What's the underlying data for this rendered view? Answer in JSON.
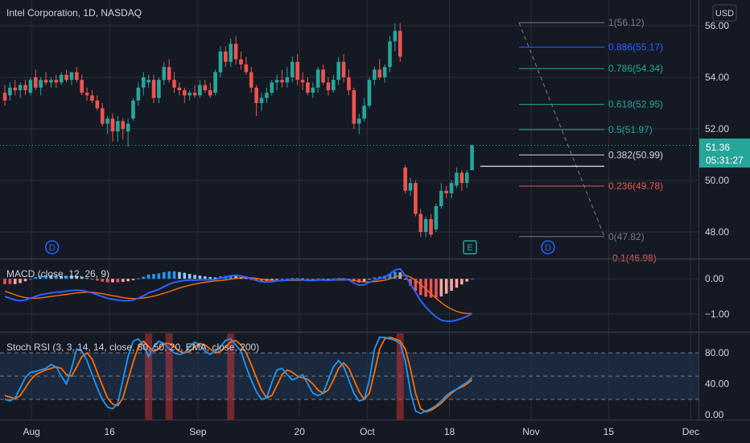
{
  "title": "Intel Corporation, 1D, NASDAQ",
  "currency": "USD",
  "price_badge": {
    "price": "51.36",
    "countdown": "05:31:27",
    "color": "#26a69a"
  },
  "colors": {
    "up": "#26a69a",
    "down": "#ef5350",
    "bg": "#151924",
    "grid": "#2a2e39"
  },
  "chart_data": [
    {
      "type": "candlestick",
      "name": "Intel Corporation, 1D, NASDAQ",
      "ylim": [
        47,
        57
      ],
      "y_ticks": [
        "56.00",
        "54.00",
        "52.00",
        "50.00",
        "48.00"
      ],
      "x_ticks": [
        "Aug",
        "16",
        "Sep",
        "20",
        "Oct",
        "18",
        "Nov",
        "15",
        "Dec"
      ],
      "candles": [
        {
          "o": 53.4,
          "h": 53.7,
          "l": 52.9,
          "c": 53.1
        },
        {
          "o": 53.3,
          "h": 53.8,
          "l": 53.1,
          "c": 53.6
        },
        {
          "o": 53.6,
          "h": 53.9,
          "l": 53.3,
          "c": 53.5
        },
        {
          "o": 53.5,
          "h": 53.8,
          "l": 53.2,
          "c": 53.7
        },
        {
          "o": 53.7,
          "h": 53.9,
          "l": 53.3,
          "c": 53.5
        },
        {
          "o": 53.4,
          "h": 54.0,
          "l": 53.3,
          "c": 53.9
        },
        {
          "o": 54.0,
          "h": 54.3,
          "l": 53.5,
          "c": 53.6
        },
        {
          "o": 53.6,
          "h": 54.0,
          "l": 53.3,
          "c": 53.9
        },
        {
          "o": 53.9,
          "h": 54.2,
          "l": 53.7,
          "c": 53.8
        },
        {
          "o": 53.8,
          "h": 54.0,
          "l": 53.6,
          "c": 53.9
        },
        {
          "o": 53.9,
          "h": 54.1,
          "l": 53.6,
          "c": 53.8
        },
        {
          "o": 53.8,
          "h": 54.2,
          "l": 53.7,
          "c": 54.1
        },
        {
          "o": 54.1,
          "h": 54.3,
          "l": 53.8,
          "c": 53.9
        },
        {
          "o": 53.9,
          "h": 54.2,
          "l": 53.7,
          "c": 54.2
        },
        {
          "o": 54.2,
          "h": 54.4,
          "l": 53.8,
          "c": 53.9
        },
        {
          "o": 53.9,
          "h": 54.1,
          "l": 53.3,
          "c": 53.4
        },
        {
          "o": 53.4,
          "h": 53.6,
          "l": 53.1,
          "c": 53.3
        },
        {
          "o": 53.3,
          "h": 53.5,
          "l": 53.0,
          "c": 53.1
        },
        {
          "o": 53.1,
          "h": 53.3,
          "l": 52.7,
          "c": 52.8
        },
        {
          "o": 52.8,
          "h": 53.0,
          "l": 52.1,
          "c": 52.2
        },
        {
          "o": 52.2,
          "h": 52.5,
          "l": 51.8,
          "c": 52.4
        },
        {
          "o": 52.4,
          "h": 52.6,
          "l": 51.5,
          "c": 51.9
        },
        {
          "o": 51.9,
          "h": 52.5,
          "l": 51.5,
          "c": 52.3
        },
        {
          "o": 52.3,
          "h": 52.4,
          "l": 51.6,
          "c": 52.0
        },
        {
          "o": 51.9,
          "h": 52.4,
          "l": 51.3,
          "c": 52.2
        },
        {
          "o": 52.4,
          "h": 53.2,
          "l": 52.3,
          "c": 53.1
        },
        {
          "o": 53.1,
          "h": 53.8,
          "l": 52.9,
          "c": 53.6
        },
        {
          "o": 53.6,
          "h": 54.2,
          "l": 53.3,
          "c": 54.0
        },
        {
          "o": 53.8,
          "h": 54.1,
          "l": 53.6,
          "c": 53.9
        },
        {
          "o": 53.9,
          "h": 54.1,
          "l": 53.0,
          "c": 53.2
        },
        {
          "o": 53.2,
          "h": 54.0,
          "l": 53.0,
          "c": 53.9
        },
        {
          "o": 53.9,
          "h": 54.6,
          "l": 53.7,
          "c": 54.4
        },
        {
          "o": 54.4,
          "h": 54.7,
          "l": 53.8,
          "c": 53.9
        },
        {
          "o": 53.9,
          "h": 54.2,
          "l": 53.4,
          "c": 53.6
        },
        {
          "o": 53.6,
          "h": 53.8,
          "l": 53.3,
          "c": 53.5
        },
        {
          "o": 53.5,
          "h": 53.6,
          "l": 53.0,
          "c": 53.3
        },
        {
          "o": 53.3,
          "h": 53.5,
          "l": 53.1,
          "c": 53.4
        },
        {
          "o": 53.4,
          "h": 53.7,
          "l": 53.2,
          "c": 53.3
        },
        {
          "o": 53.3,
          "h": 53.9,
          "l": 53.2,
          "c": 53.7
        },
        {
          "o": 53.7,
          "h": 53.9,
          "l": 53.4,
          "c": 53.5
        },
        {
          "o": 53.5,
          "h": 53.8,
          "l": 53.2,
          "c": 53.3
        },
        {
          "o": 53.4,
          "h": 54.3,
          "l": 53.3,
          "c": 54.2
        },
        {
          "o": 54.2,
          "h": 55.2,
          "l": 54.0,
          "c": 55.0
        },
        {
          "o": 55.0,
          "h": 55.2,
          "l": 54.4,
          "c": 54.6
        },
        {
          "o": 54.6,
          "h": 55.5,
          "l": 54.4,
          "c": 55.3
        },
        {
          "o": 55.3,
          "h": 55.6,
          "l": 54.5,
          "c": 54.7
        },
        {
          "o": 54.7,
          "h": 55.0,
          "l": 54.3,
          "c": 54.5
        },
        {
          "o": 54.5,
          "h": 54.8,
          "l": 54.1,
          "c": 54.2
        },
        {
          "o": 54.2,
          "h": 54.4,
          "l": 53.4,
          "c": 53.6
        },
        {
          "o": 53.6,
          "h": 53.7,
          "l": 52.5,
          "c": 53.0
        },
        {
          "o": 53.0,
          "h": 53.4,
          "l": 52.7,
          "c": 53.2
        },
        {
          "o": 53.2,
          "h": 53.6,
          "l": 53.0,
          "c": 53.4
        },
        {
          "o": 53.4,
          "h": 53.9,
          "l": 53.3,
          "c": 53.8
        },
        {
          "o": 53.8,
          "h": 54.1,
          "l": 53.5,
          "c": 53.9
        },
        {
          "o": 53.9,
          "h": 54.3,
          "l": 53.6,
          "c": 53.8
        },
        {
          "o": 53.8,
          "h": 54.4,
          "l": 53.6,
          "c": 54.0
        },
        {
          "o": 54.0,
          "h": 54.8,
          "l": 53.8,
          "c": 54.6
        },
        {
          "o": 54.6,
          "h": 54.9,
          "l": 53.7,
          "c": 53.9
        },
        {
          "o": 53.9,
          "h": 54.2,
          "l": 53.5,
          "c": 53.8
        },
        {
          "o": 53.8,
          "h": 54.0,
          "l": 53.3,
          "c": 53.4
        },
        {
          "o": 53.4,
          "h": 53.8,
          "l": 53.2,
          "c": 53.6
        },
        {
          "o": 53.6,
          "h": 54.4,
          "l": 53.4,
          "c": 54.3
        },
        {
          "o": 54.3,
          "h": 54.5,
          "l": 53.7,
          "c": 53.8
        },
        {
          "o": 53.8,
          "h": 54.0,
          "l": 53.3,
          "c": 53.5
        },
        {
          "o": 53.5,
          "h": 54.1,
          "l": 53.4,
          "c": 53.9
        },
        {
          "o": 53.9,
          "h": 54.8,
          "l": 53.7,
          "c": 54.6
        },
        {
          "o": 54.6,
          "h": 54.9,
          "l": 53.8,
          "c": 54.0
        },
        {
          "o": 54.0,
          "h": 54.3,
          "l": 53.3,
          "c": 53.5
        },
        {
          "o": 53.5,
          "h": 53.6,
          "l": 52.0,
          "c": 52.2
        },
        {
          "o": 52.2,
          "h": 52.6,
          "l": 51.8,
          "c": 52.4
        },
        {
          "o": 52.4,
          "h": 53.2,
          "l": 52.3,
          "c": 52.9
        },
        {
          "o": 52.9,
          "h": 54.0,
          "l": 52.8,
          "c": 53.9
        },
        {
          "o": 53.9,
          "h": 54.4,
          "l": 53.7,
          "c": 54.3
        },
        {
          "o": 54.3,
          "h": 54.7,
          "l": 53.9,
          "c": 54.0
        },
        {
          "o": 54.0,
          "h": 54.5,
          "l": 53.8,
          "c": 54.4
        },
        {
          "o": 54.4,
          "h": 55.6,
          "l": 54.2,
          "c": 55.4
        },
        {
          "o": 55.4,
          "h": 56.1,
          "l": 55.0,
          "c": 55.8
        },
        {
          "o": 55.8,
          "h": 56.1,
          "l": 54.6,
          "c": 54.8
        },
        {
          "o": 50.5,
          "h": 50.6,
          "l": 49.5,
          "c": 49.6
        },
        {
          "o": 49.6,
          "h": 50.1,
          "l": 49.4,
          "c": 49.9
        },
        {
          "o": 49.9,
          "h": 50.0,
          "l": 48.6,
          "c": 48.7
        },
        {
          "o": 48.7,
          "h": 48.9,
          "l": 47.8,
          "c": 48.0
        },
        {
          "o": 48.0,
          "h": 48.6,
          "l": 47.8,
          "c": 48.5
        },
        {
          "o": 48.5,
          "h": 48.7,
          "l": 47.8,
          "c": 47.9
        },
        {
          "o": 48.1,
          "h": 49.1,
          "l": 48.0,
          "c": 49.0
        },
        {
          "o": 49.0,
          "h": 49.9,
          "l": 48.9,
          "c": 49.6
        },
        {
          "o": 49.6,
          "h": 49.8,
          "l": 49.3,
          "c": 49.5
        },
        {
          "o": 49.5,
          "h": 50.0,
          "l": 49.3,
          "c": 49.9
        },
        {
          "o": 49.8,
          "h": 50.5,
          "l": 49.7,
          "c": 50.3
        },
        {
          "o": 50.3,
          "h": 50.4,
          "l": 49.6,
          "c": 49.9
        },
        {
          "o": 49.9,
          "h": 50.4,
          "l": 49.7,
          "c": 50.3
        },
        {
          "o": 50.4,
          "h": 51.4,
          "l": 50.4,
          "c": 51.36
        }
      ],
      "fibonacci": [
        {
          "ratio": "1",
          "value": 56.12,
          "label": "1(56.12)",
          "color": "#787b86"
        },
        {
          "ratio": "0.886",
          "value": 55.17,
          "label": "0.886(55.17)",
          "color": "#2962ff"
        },
        {
          "ratio": "0.786",
          "value": 54.34,
          "label": "0.786(54.34)",
          "color": "#22ab94"
        },
        {
          "ratio": "0.618",
          "value": 52.95,
          "label": "0.618(52.95)",
          "color": "#26a69a"
        },
        {
          "ratio": "0.5",
          "value": 51.97,
          "label": "0.5(51.97)",
          "color": "#26a69a"
        },
        {
          "ratio": "0.382",
          "value": 50.99,
          "label": "0.382(50.99)",
          "color": "#d1d4dc"
        },
        {
          "ratio": "0.236",
          "value": 49.78,
          "label": "0.236(49.78)",
          "color": "#ef5350"
        },
        {
          "ratio": "0",
          "value": 47.82,
          "label": "0(47.82)",
          "color": "#787b86"
        },
        {
          "ratio": "-0.1",
          "value": 46.98,
          "label": "-0.1(46.98)",
          "color": "#ef5350"
        }
      ],
      "horizontal_line": {
        "value": 50.55
      },
      "event_markers": [
        {
          "letter": "D",
          "type": "dividend",
          "color": "#2962ff"
        },
        {
          "letter": "E",
          "type": "earnings",
          "color": "#26a69a"
        },
        {
          "letter": "D",
          "type": "dividend",
          "color": "#2962ff"
        }
      ]
    },
    {
      "type": "macd",
      "name": "MACD (close, 12, 26, 9)",
      "ylim": [
        -1.5,
        0.55
      ],
      "y_ticks": [
        "0.00",
        "−1.00"
      ],
      "macd_line_color": "#2962ff",
      "signal_line_color": "#ff6d00",
      "macd": [
        -0.5,
        -0.55,
        -0.6,
        -0.62,
        -0.6,
        -0.55,
        -0.5,
        -0.45,
        -0.42,
        -0.4,
        -0.38,
        -0.37,
        -0.35,
        -0.33,
        -0.32,
        -0.33,
        -0.36,
        -0.4,
        -0.45,
        -0.5,
        -0.55,
        -0.58,
        -0.6,
        -0.62,
        -0.62,
        -0.6,
        -0.55,
        -0.48,
        -0.4,
        -0.35,
        -0.3,
        -0.22,
        -0.15,
        -0.1,
        -0.07,
        -0.05,
        -0.04,
        -0.04,
        -0.03,
        -0.03,
        -0.03,
        -0.02,
        0.02,
        0.05,
        0.09,
        0.1,
        0.08,
        0.05,
        0.0,
        -0.05,
        -0.08,
        -0.09,
        -0.08,
        -0.06,
        -0.05,
        -0.04,
        -0.02,
        -0.02,
        -0.03,
        -0.05,
        -0.05,
        -0.03,
        -0.03,
        -0.04,
        -0.03,
        -0.01,
        -0.01,
        -0.03,
        -0.12,
        -0.18,
        -0.17,
        -0.1,
        -0.04,
        0.0,
        0.05,
        0.14,
        0.25,
        0.28,
        0.1,
        -0.15,
        -0.38,
        -0.62,
        -0.8,
        -0.95,
        -1.08,
        -1.17,
        -1.2,
        -1.2,
        -1.17,
        -1.12,
        -1.06,
        -0.98
      ],
      "signal": [
        -0.35,
        -0.4,
        -0.45,
        -0.5,
        -0.53,
        -0.55,
        -0.55,
        -0.54,
        -0.52,
        -0.5,
        -0.48,
        -0.46,
        -0.44,
        -0.42,
        -0.4,
        -0.39,
        -0.38,
        -0.38,
        -0.4,
        -0.42,
        -0.45,
        -0.48,
        -0.5,
        -0.53,
        -0.55,
        -0.56,
        -0.56,
        -0.54,
        -0.52,
        -0.49,
        -0.45,
        -0.41,
        -0.36,
        -0.31,
        -0.26,
        -0.22,
        -0.18,
        -0.15,
        -0.12,
        -0.1,
        -0.08,
        -0.06,
        -0.05,
        -0.03,
        -0.01,
        0.01,
        0.03,
        0.03,
        0.03,
        0.01,
        -0.01,
        -0.03,
        -0.04,
        -0.05,
        -0.05,
        -0.05,
        -0.04,
        -0.04,
        -0.04,
        -0.04,
        -0.04,
        -0.04,
        -0.04,
        -0.04,
        -0.04,
        -0.03,
        -0.03,
        -0.03,
        -0.05,
        -0.07,
        -0.09,
        -0.09,
        -0.08,
        -0.06,
        -0.04,
        0.0,
        0.05,
        0.1,
        0.1,
        0.05,
        -0.04,
        -0.16,
        -0.29,
        -0.42,
        -0.55,
        -0.67,
        -0.78,
        -0.86,
        -0.92,
        -0.96,
        -0.98,
        -0.98
      ]
    },
    {
      "type": "stoch_rsi",
      "name": "Stoch RSI (3, 3, 14, 14, close, 80, 50, 20, EMA, close, 200)",
      "ylim": [
        -5,
        105
      ],
      "y_ticks": [
        "80.00",
        "40.00",
        "0.00"
      ],
      "bands": [
        80,
        50,
        20
      ],
      "k_color": "#2196f3",
      "d_color": "#ff6d00",
      "k": [
        20,
        18,
        22,
        35,
        48,
        55,
        56,
        58,
        60,
        65,
        62,
        50,
        40,
        60,
        85,
        82,
        70,
        52,
        35,
        20,
        10,
        8,
        15,
        45,
        75,
        95,
        98,
        90,
        75,
        88,
        95,
        92,
        85,
        80,
        78,
        80,
        88,
        94,
        90,
        82,
        78,
        82,
        88,
        96,
        98,
        90,
        82,
        62,
        45,
        30,
        20,
        22,
        42,
        58,
        60,
        52,
        45,
        48,
        52,
        40,
        28,
        25,
        28,
        45,
        62,
        70,
        62,
        45,
        28,
        18,
        20,
        45,
        85,
        100,
        100,
        98,
        96,
        92,
        70,
        30,
        5,
        2,
        5,
        8,
        12,
        18,
        25,
        30,
        33,
        38,
        42,
        48
      ],
      "d": [
        25,
        23,
        21,
        25,
        35,
        45,
        52,
        55,
        58,
        60,
        62,
        60,
        52,
        50,
        62,
        75,
        80,
        72,
        55,
        38,
        22,
        14,
        12,
        22,
        45,
        68,
        88,
        95,
        88,
        82,
        85,
        92,
        92,
        88,
        82,
        80,
        82,
        88,
        92,
        90,
        85,
        80,
        82,
        88,
        94,
        96,
        90,
        80,
        65,
        48,
        32,
        22,
        25,
        38,
        52,
        58,
        55,
        50,
        48,
        46,
        40,
        32,
        28,
        32,
        45,
        60,
        67,
        60,
        45,
        30,
        20,
        28,
        55,
        85,
        98,
        100,
        98,
        95,
        85,
        60,
        28,
        8,
        4,
        6,
        10,
        15,
        22,
        28,
        33,
        36,
        40,
        45
      ]
    }
  ],
  "highlight_columns": [
    28,
    32,
    44,
    77
  ],
  "panes": {
    "macd_label": "MACD (close, 12, 26, 9)",
    "stoch_label": "Stoch RSI (3, 3, 14, 14, close, 80, 50, 20, EMA, close, 200)"
  }
}
